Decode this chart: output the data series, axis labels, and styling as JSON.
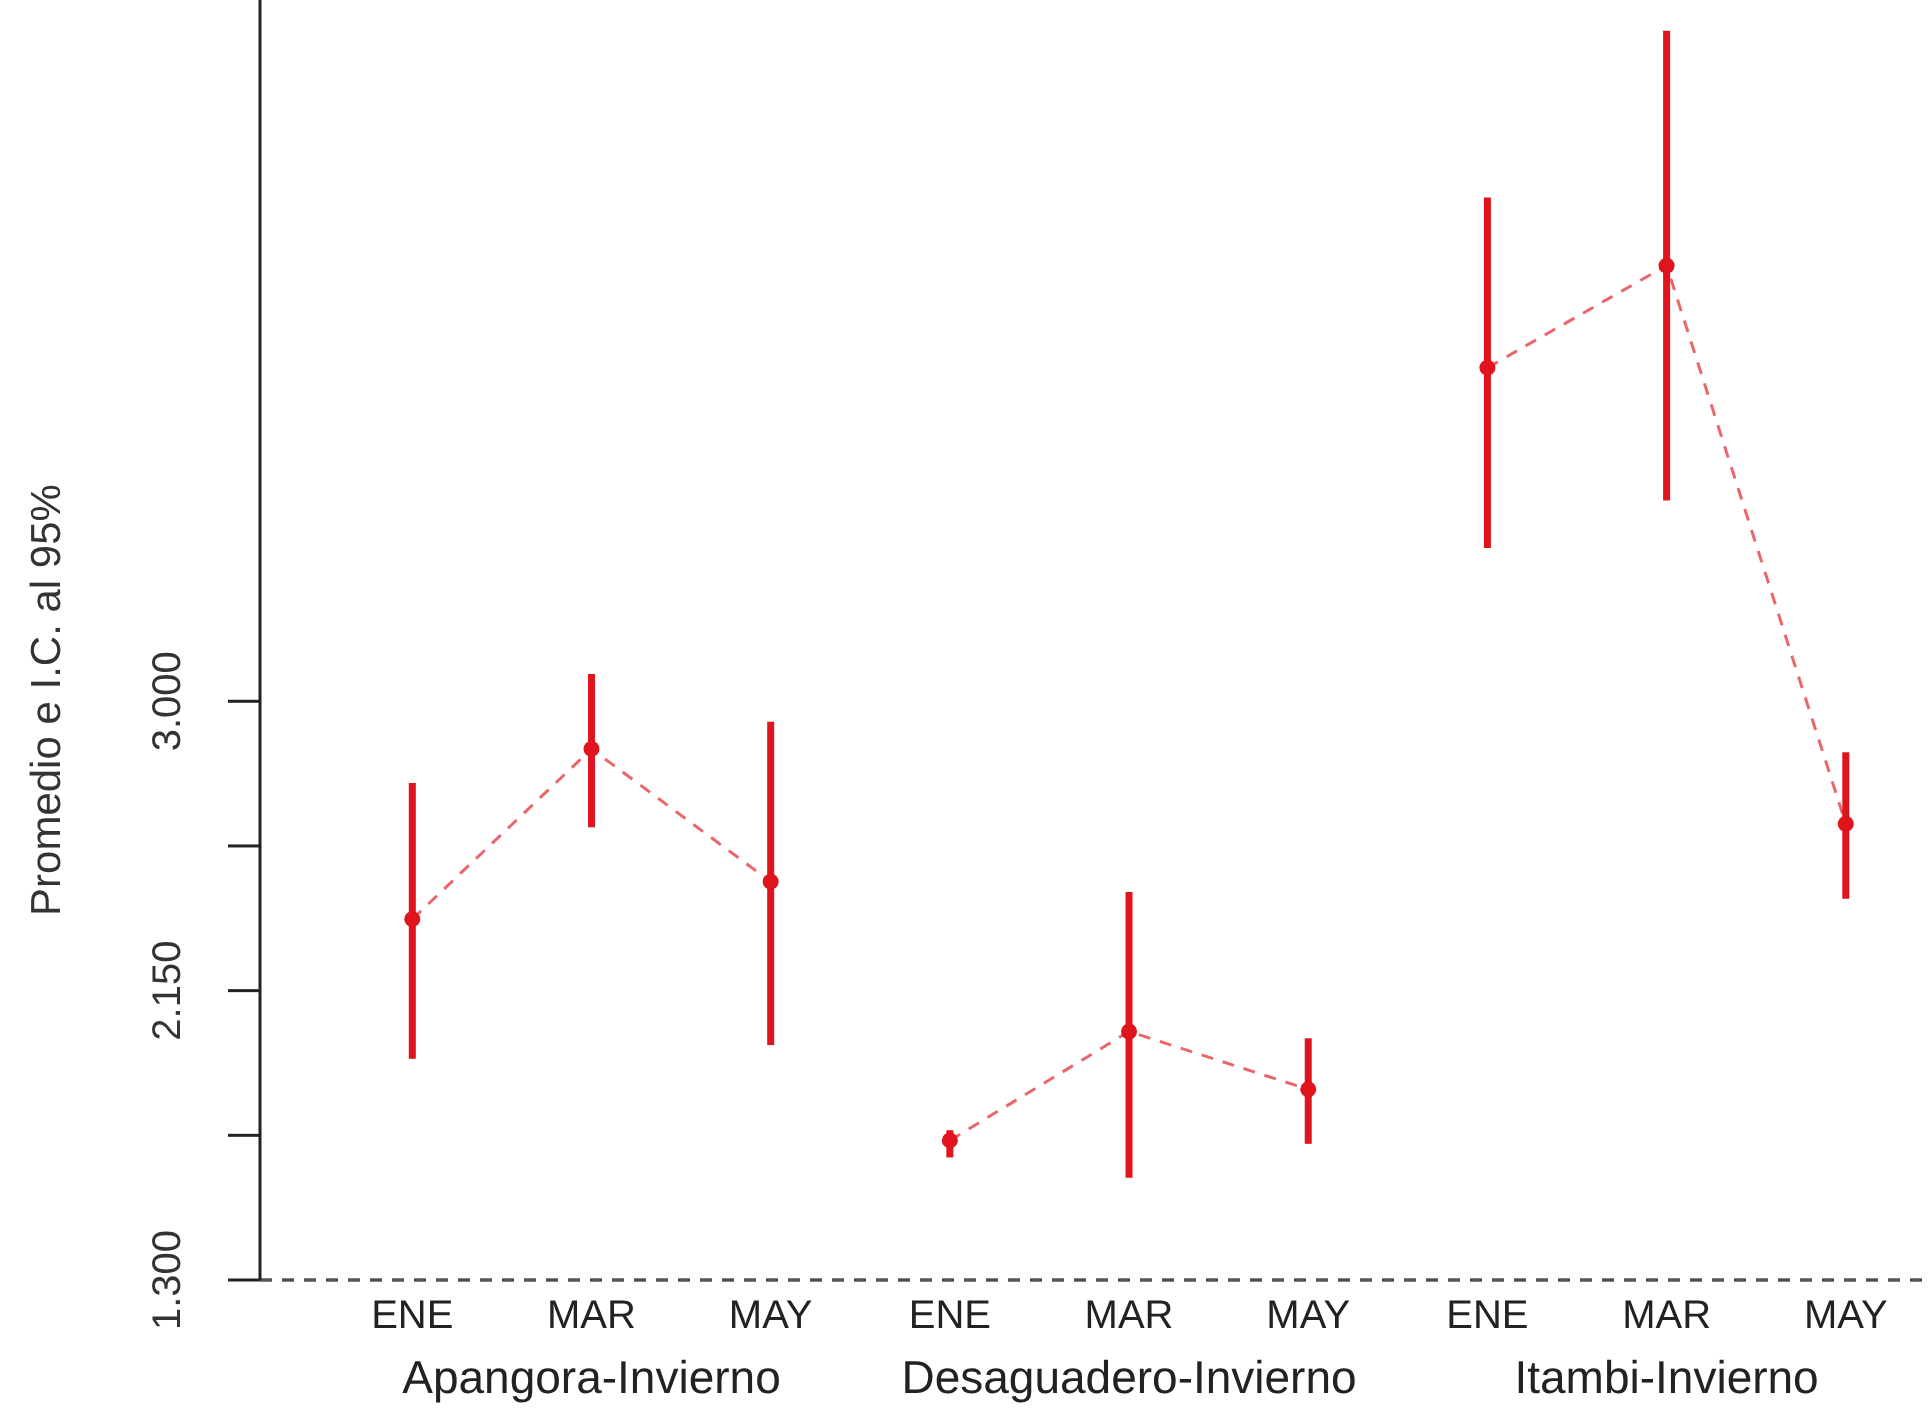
{
  "chart_data": {
    "type": "line",
    "ylabel": "Promedio e I.C. al 95%",
    "categories": [
      "ENE",
      "MAR",
      "MAY",
      "ENE",
      "MAR",
      "MAY",
      "ENE",
      "MAR",
      "MAY"
    ],
    "series": [
      {
        "color": "#e0141c",
        "values": [
          2.36,
          2.86,
          2.47,
          null,
          null,
          null,
          null,
          null,
          null
        ],
        "errors": [
          [
            1.95,
            2.76
          ],
          [
            2.63,
            3.08
          ],
          [
            1.99,
            2.94
          ],
          null,
          null,
          null,
          null,
          null,
          null
        ]
      },
      {
        "color": "#e0141c",
        "values": [
          null,
          null,
          null,
          1.71,
          2.03,
          1.86,
          null,
          null,
          null
        ],
        "errors": [
          null,
          null,
          null,
          [
            1.66,
            1.74
          ],
          [
            1.6,
            2.44
          ],
          [
            1.7,
            2.01
          ],
          null,
          null,
          null
        ]
      },
      {
        "color": "#e0141c",
        "values": [
          null,
          null,
          null,
          null,
          null,
          null,
          3.98,
          4.28,
          2.64
        ],
        "errors": [
          null,
          null,
          null,
          null,
          null,
          null,
          [
            3.45,
            4.48
          ],
          [
            3.59,
            4.97
          ],
          [
            2.42,
            2.85
          ]
        ]
      }
    ],
    "annotations": [
      "Apangora-Invierno",
      "Desaguadero-Invierno",
      "Itambi-Invierno"
    ],
    "ylim": [
      1.3,
      5.06
    ],
    "yticks": [
      {
        "value": 1.3,
        "label": "1.300"
      },
      {
        "value": 1.725,
        "label": null
      },
      {
        "value": 2.15,
        "label": "2.150"
      },
      {
        "value": 2.575,
        "label": null
      },
      {
        "value": 3.0,
        "label": "3.000"
      }
    ],
    "marker": "circle",
    "line_style": "dashed",
    "ref_lines": [
      {
        "axis": "y",
        "value": 1.3,
        "color": "#555555",
        "line_style": "dashed"
      }
    ]
  }
}
